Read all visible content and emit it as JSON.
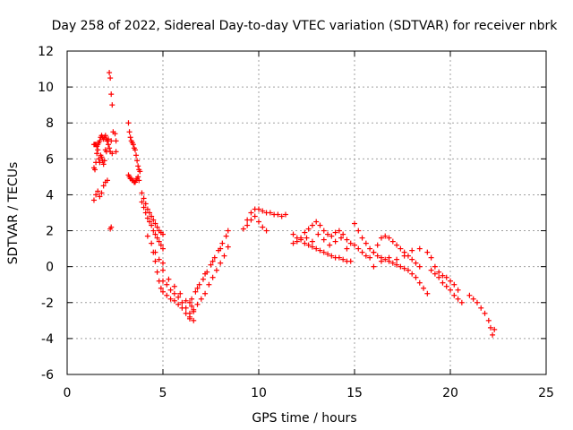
{
  "chart_data": {
    "type": "scatter",
    "title": "Day 258 of 2022, Sidereal Day-to-day VTEC variation (SDTVAR) for receiver nbrk",
    "xlabel": "GPS time / hours",
    "ylabel": "SDTVAR / TECUs",
    "xlim": [
      0,
      25
    ],
    "ylim": [
      -6,
      12
    ],
    "xticks": [
      0,
      5,
      10,
      15,
      20,
      25
    ],
    "yticks": [
      -6,
      -4,
      -2,
      0,
      2,
      4,
      6,
      8,
      10,
      12
    ],
    "grid": true,
    "marker": "+",
    "color": "#ff0000",
    "series": [
      {
        "name": "SDTVAR",
        "x": [
          1.4,
          1.45,
          1.5,
          1.55,
          1.6,
          1.65,
          1.7,
          1.75,
          1.8,
          1.85,
          1.9,
          1.95,
          2.0,
          2.05,
          2.1,
          2.15,
          2.2,
          2.25,
          2.3,
          2.35,
          2.4,
          1.4,
          1.45,
          1.5,
          1.55,
          1.6,
          1.65,
          1.7,
          1.75,
          1.8,
          1.85,
          1.9,
          1.95,
          2.0,
          2.05,
          2.1,
          2.15,
          2.2,
          2.25,
          1.4,
          1.5,
          1.6,
          1.7,
          1.8,
          1.9,
          2.0,
          2.1,
          2.25,
          2.3,
          2.35,
          2.3,
          2.5,
          2.55,
          2.55,
          3.2,
          3.25,
          3.3,
          3.35,
          3.4,
          3.45,
          3.5,
          3.55,
          3.6,
          3.65,
          3.7,
          3.75,
          3.8,
          3.2,
          3.25,
          3.3,
          3.35,
          3.4,
          3.45,
          3.5,
          3.55,
          3.6,
          3.65,
          3.7,
          3.75,
          3.9,
          4.0,
          4.1,
          4.2,
          4.3,
          4.4,
          4.5,
          4.6,
          4.7,
          4.8,
          4.9,
          5.0,
          3.9,
          4.0,
          4.1,
          4.2,
          4.3,
          4.4,
          4.5,
          4.6,
          4.7,
          4.8,
          4.9,
          5.0,
          4.2,
          4.4,
          4.6,
          4.8,
          5.0,
          4.5,
          4.6,
          4.7,
          4.8,
          4.9,
          5.0,
          5.2,
          5.4,
          5.6,
          5.8,
          6.0,
          6.2,
          6.4,
          6.6,
          5.0,
          5.2,
          5.4,
          5.6,
          5.8,
          6.0,
          6.2,
          6.4,
          6.6,
          5.0,
          5.3,
          5.6,
          5.9,
          6.2,
          6.5,
          6.4,
          6.6,
          6.8,
          7.0,
          7.2,
          7.4,
          7.6,
          7.8,
          8.0,
          8.2,
          8.4,
          6.5,
          6.7,
          6.9,
          7.1,
          7.3,
          7.5,
          7.7,
          7.9,
          8.1,
          8.3,
          6.4,
          6.8,
          7.2,
          7.6,
          8.0,
          8.4,
          9.2,
          9.4,
          9.6,
          9.8,
          10.0,
          10.2,
          10.4,
          10.6,
          10.8,
          11.0,
          11.2,
          11.4,
          9.4,
          9.6,
          9.8,
          10.0,
          10.2,
          10.4,
          11.8,
          12.0,
          12.2,
          12.4,
          12.6,
          12.8,
          13.0,
          13.2,
          13.4,
          13.6,
          13.8,
          14.0,
          14.2,
          14.4,
          14.6,
          14.8,
          11.8,
          12.0,
          12.2,
          12.4,
          12.6,
          12.8,
          13.0,
          13.2,
          13.4,
          13.6,
          13.8,
          14.0,
          14.2,
          14.4,
          14.6,
          14.8,
          12.5,
          12.8,
          13.1,
          13.4,
          13.7,
          14.0,
          14.3,
          14.6,
          15.0,
          15.2,
          15.4,
          15.6,
          15.8,
          16.0,
          16.2,
          16.4,
          16.6,
          16.8,
          17.0,
          17.2,
          17.4,
          17.6,
          17.8,
          18.0,
          18.2,
          18.4,
          18.6,
          18.8,
          15.0,
          15.2,
          15.4,
          15.6,
          15.8,
          16.0,
          16.2,
          16.4,
          16.6,
          16.8,
          17.0,
          17.2,
          17.4,
          17.6,
          17.8,
          18.0,
          18.2,
          18.4,
          16.0,
          16.4,
          16.8,
          17.2,
          17.6,
          18.0,
          18.4,
          18.8,
          19.0,
          19.2,
          19.4,
          19.6,
          19.8,
          20.0,
          20.2,
          20.4,
          19.0,
          19.2,
          19.4,
          19.6,
          19.8,
          20.0,
          20.2,
          20.4,
          20.6,
          21.0,
          21.2,
          21.4,
          21.6,
          21.8,
          22.0,
          22.1,
          22.2,
          22.3
        ],
        "y": [
          6.8,
          6.8,
          6.8,
          6.7,
          6.8,
          6.9,
          7.0,
          7.2,
          7.3,
          7.2,
          7.1,
          7.2,
          7.3,
          7.1,
          7.0,
          7.1,
          10.8,
          10.5,
          9.6,
          9.0,
          7.5,
          5.5,
          5.4,
          5.8,
          6.3,
          6.5,
          6.0,
          5.8,
          6.2,
          6.1,
          5.9,
          5.7,
          5.9,
          6.5,
          6.4,
          7.0,
          6.8,
          6.6,
          6.4,
          3.7,
          4.0,
          4.2,
          3.9,
          4.1,
          4.5,
          4.7,
          4.8,
          2.1,
          2.2,
          6.3,
          7.0,
          7.4,
          7.0,
          6.4,
          8.0,
          7.5,
          7.2,
          7.0,
          6.9,
          6.8,
          6.6,
          6.5,
          6.2,
          5.9,
          5.6,
          5.4,
          5.3,
          5.1,
          5.0,
          4.9,
          4.9,
          4.8,
          4.8,
          4.7,
          4.7,
          4.8,
          4.9,
          5.0,
          4.8,
          4.1,
          3.8,
          3.5,
          3.2,
          3.0,
          2.8,
          2.6,
          2.4,
          2.2,
          2.0,
          1.9,
          1.8,
          3.6,
          3.3,
          3.0,
          2.7,
          2.5,
          2.3,
          2.0,
          1.8,
          1.6,
          1.4,
          1.2,
          1.0,
          1.7,
          1.3,
          0.8,
          0.4,
          0.2,
          0.8,
          0.3,
          -0.3,
          -0.8,
          -1.2,
          -1.4,
          -1.6,
          -1.8,
          -1.9,
          -2.1,
          -2.3,
          -2.6,
          -2.9,
          -2.5,
          -0.8,
          -1.0,
          -1.3,
          -1.5,
          -1.7,
          -2.0,
          -2.3,
          -2.8,
          -3.0,
          -0.2,
          -0.7,
          -1.1,
          -1.5,
          -1.9,
          -2.2,
          -2.6,
          -2.4,
          -2.1,
          -1.8,
          -1.5,
          -1.0,
          -0.6,
          -0.2,
          0.2,
          0.6,
          1.1,
          -1.8,
          -1.4,
          -1.0,
          -0.7,
          -0.3,
          0.1,
          0.5,
          0.9,
          1.3,
          1.7,
          -2.0,
          -1.2,
          -0.4,
          0.3,
          1.0,
          2.0,
          2.1,
          2.6,
          3.0,
          3.2,
          3.2,
          3.1,
          3.0,
          3.0,
          2.9,
          2.9,
          2.8,
          2.9,
          2.3,
          2.6,
          2.8,
          2.5,
          2.2,
          2.0,
          1.8,
          1.6,
          1.5,
          1.3,
          1.2,
          1.1,
          1.0,
          0.9,
          0.8,
          0.7,
          0.6,
          0.5,
          0.5,
          0.4,
          0.3,
          0.3,
          1.3,
          1.4,
          1.6,
          1.9,
          2.1,
          2.3,
          2.5,
          2.3,
          2.0,
          1.8,
          1.7,
          1.9,
          2.0,
          1.8,
          1.5,
          1.3,
          1.6,
          1.4,
          1.8,
          1.5,
          1.2,
          1.4,
          1.6,
          1.0,
          2.4,
          2.0,
          1.6,
          1.3,
          1.0,
          0.8,
          0.6,
          0.5,
          0.4,
          0.3,
          0.2,
          0.1,
          0.0,
          -0.1,
          -0.2,
          -0.4,
          -0.6,
          -0.9,
          -1.2,
          -1.5,
          1.2,
          1.0,
          0.8,
          0.6,
          0.5,
          0.8,
          1.2,
          1.6,
          1.7,
          1.6,
          1.4,
          1.2,
          1.0,
          0.8,
          0.6,
          0.4,
          0.2,
          0.0,
          0.0,
          0.3,
          0.5,
          0.4,
          0.6,
          0.9,
          1.0,
          0.8,
          0.5,
          0.0,
          -0.3,
          -0.5,
          -0.6,
          -0.8,
          -1.0,
          -1.3,
          -0.2,
          -0.4,
          -0.6,
          -0.9,
          -1.1,
          -1.3,
          -1.6,
          -1.8,
          -2.0,
          -1.6,
          -1.8,
          -2.0,
          -2.3,
          -2.6,
          -3.0,
          -3.4,
          -3.8,
          -3.5
        ]
      }
    ]
  }
}
